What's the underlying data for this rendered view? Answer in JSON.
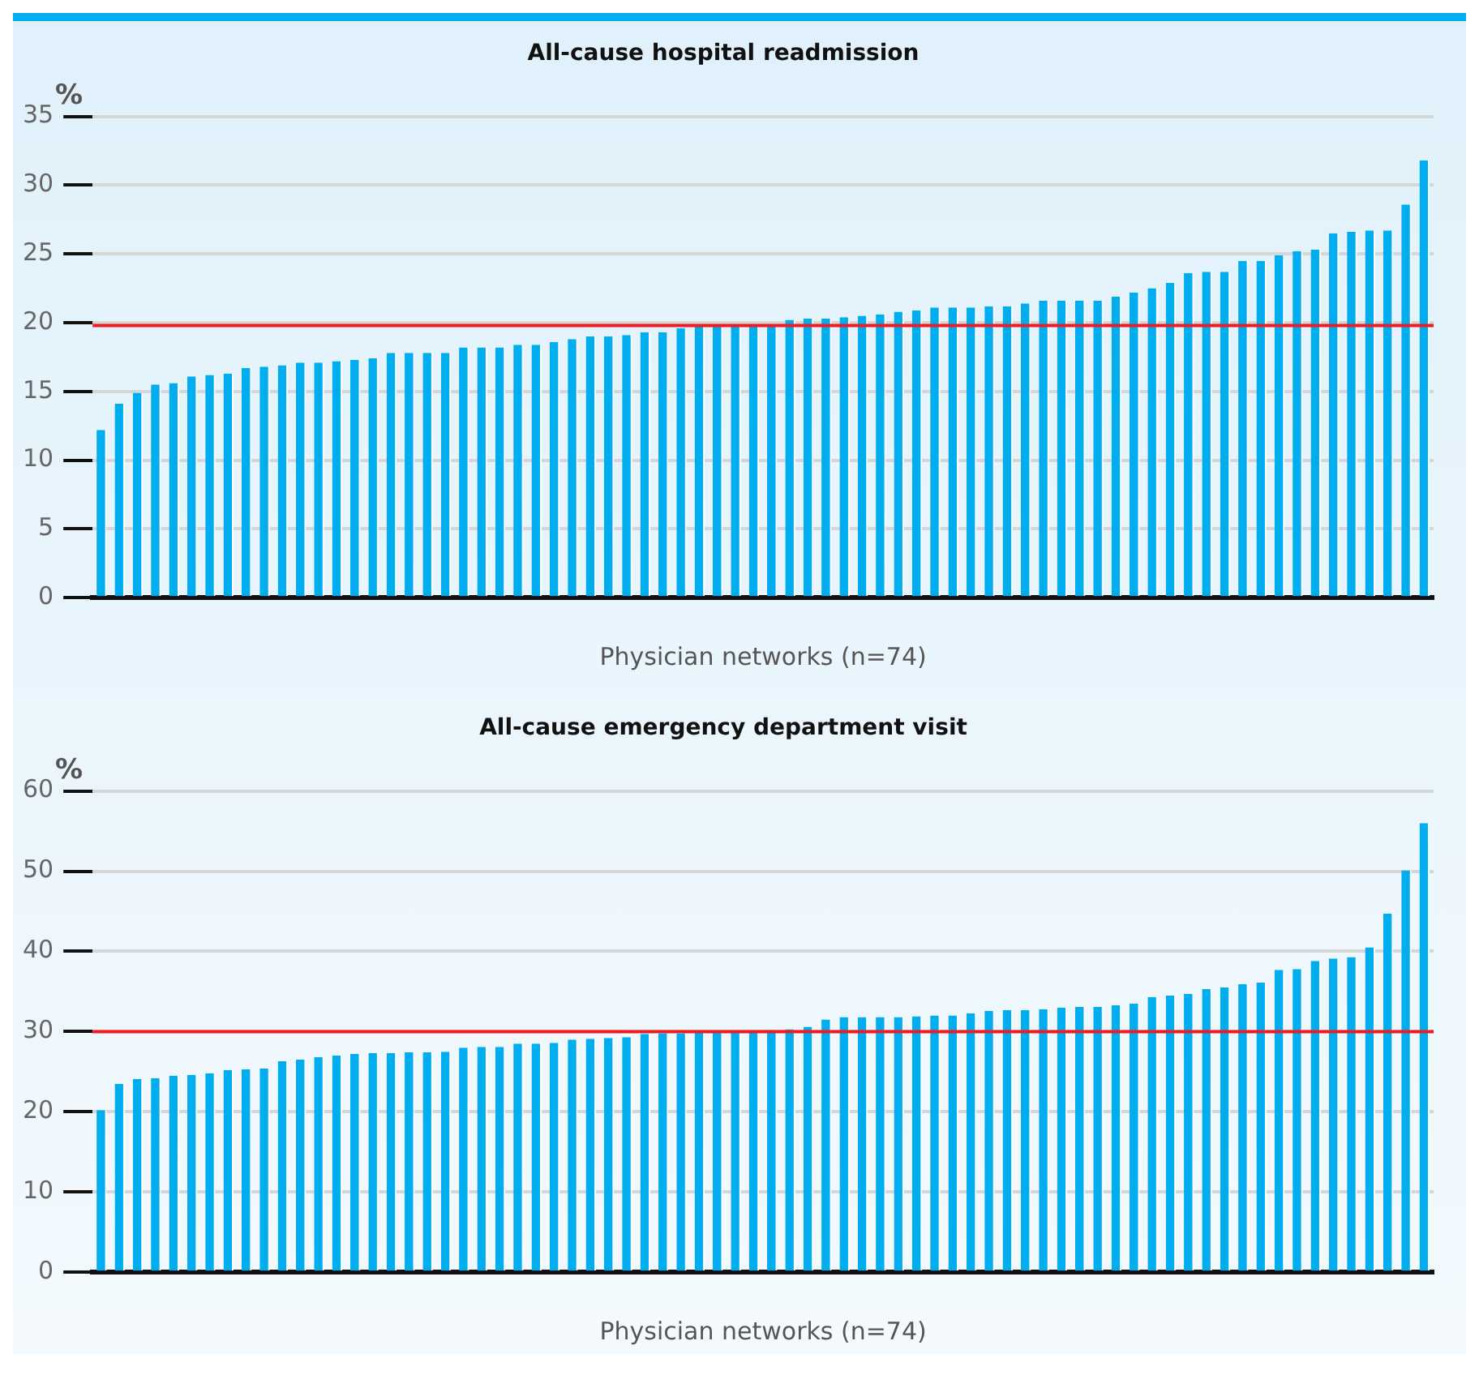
{
  "chart_data": [
    {
      "type": "bar",
      "title": "All-cause hospital readmission",
      "ylabel": "%",
      "xlabel": "Physician networks (n=74)",
      "categories": [
        null,
        null,
        null,
        null,
        null,
        null,
        null,
        null,
        null,
        null,
        null,
        null,
        null,
        null,
        null,
        null,
        null,
        null,
        null,
        null,
        null,
        null,
        null,
        null,
        null,
        null,
        null,
        null,
        null,
        null,
        null,
        null,
        null,
        null,
        null,
        null,
        null,
        null,
        null,
        null,
        null,
        null,
        null,
        null,
        null,
        null,
        null,
        null,
        null,
        null,
        null,
        null,
        null,
        null,
        null,
        null,
        null,
        null,
        null,
        null,
        null,
        null,
        null,
        null,
        null,
        null,
        null,
        null,
        null,
        null,
        null,
        null,
        null,
        null
      ],
      "series": [
        {
          "color": "#00aeef",
          "values": [
            12.2,
            14.1,
            14.9,
            15.5,
            15.6,
            16.1,
            16.2,
            16.3,
            16.7,
            16.8,
            16.9,
            17.1,
            17.1,
            17.2,
            17.3,
            17.4,
            17.8,
            17.8,
            17.8,
            17.8,
            18.2,
            18.2,
            18.2,
            18.4,
            18.4,
            18.6,
            18.8,
            19.0,
            19.0,
            19.1,
            19.3,
            19.3,
            19.6,
            19.7,
            19.7,
            19.7,
            19.8,
            19.8,
            20.2,
            20.3,
            20.3,
            20.4,
            20.5,
            20.6,
            20.8,
            20.9,
            21.1,
            21.1,
            21.1,
            21.2,
            21.2,
            21.4,
            21.6,
            21.6,
            21.6,
            21.6,
            21.9,
            22.2,
            22.5,
            22.9,
            23.6,
            23.7,
            23.7,
            24.5,
            24.5,
            24.9,
            25.2,
            25.3,
            26.5,
            26.6,
            26.7,
            26.7,
            28.6,
            31.8
          ]
        }
      ],
      "ylim": [
        0,
        35
      ],
      "yticks": [
        0,
        5,
        10,
        15,
        20,
        25,
        30,
        35
      ],
      "grid": "y",
      "legend": false,
      "ref_lines": [
        {
          "axis": "y",
          "value": 19.8,
          "color": "#ed1c24"
        }
      ]
    },
    {
      "type": "bar",
      "title": "All-cause emergency department visit",
      "ylabel": "%",
      "xlabel": "Physician networks (n=74)",
      "categories": [
        null,
        null,
        null,
        null,
        null,
        null,
        null,
        null,
        null,
        null,
        null,
        null,
        null,
        null,
        null,
        null,
        null,
        null,
        null,
        null,
        null,
        null,
        null,
        null,
        null,
        null,
        null,
        null,
        null,
        null,
        null,
        null,
        null,
        null,
        null,
        null,
        null,
        null,
        null,
        null,
        null,
        null,
        null,
        null,
        null,
        null,
        null,
        null,
        null,
        null,
        null,
        null,
        null,
        null,
        null,
        null,
        null,
        null,
        null,
        null,
        null,
        null,
        null,
        null,
        null,
        null,
        null,
        null,
        null,
        null,
        null,
        null,
        null,
        null
      ],
      "series": [
        {
          "color": "#00aeef",
          "values": [
            20.2,
            23.5,
            24.1,
            24.2,
            24.5,
            24.6,
            24.8,
            25.2,
            25.3,
            25.4,
            26.3,
            26.5,
            26.8,
            27.0,
            27.2,
            27.3,
            27.3,
            27.4,
            27.4,
            27.5,
            28.0,
            28.1,
            28.1,
            28.5,
            28.5,
            28.6,
            29.0,
            29.1,
            29.2,
            29.3,
            29.7,
            29.8,
            29.8,
            29.9,
            29.9,
            29.9,
            30.0,
            30.2,
            30.3,
            30.6,
            31.5,
            31.8,
            31.8,
            31.8,
            31.8,
            31.9,
            32.0,
            32.0,
            32.3,
            32.6,
            32.7,
            32.7,
            32.8,
            33.0,
            33.1,
            33.1,
            33.3,
            33.5,
            34.3,
            34.5,
            34.7,
            35.3,
            35.5,
            35.9,
            36.1,
            37.7,
            37.8,
            38.8,
            39.1,
            39.3,
            40.5,
            44.7,
            50.1,
            56.0
          ]
        }
      ],
      "ylim": [
        0,
        60
      ],
      "yticks": [
        0,
        10,
        20,
        30,
        40,
        50,
        60
      ],
      "grid": "y",
      "legend": false,
      "ref_lines": [
        {
          "axis": "y",
          "value": 30,
          "color": "#ed1c24"
        }
      ]
    }
  ]
}
